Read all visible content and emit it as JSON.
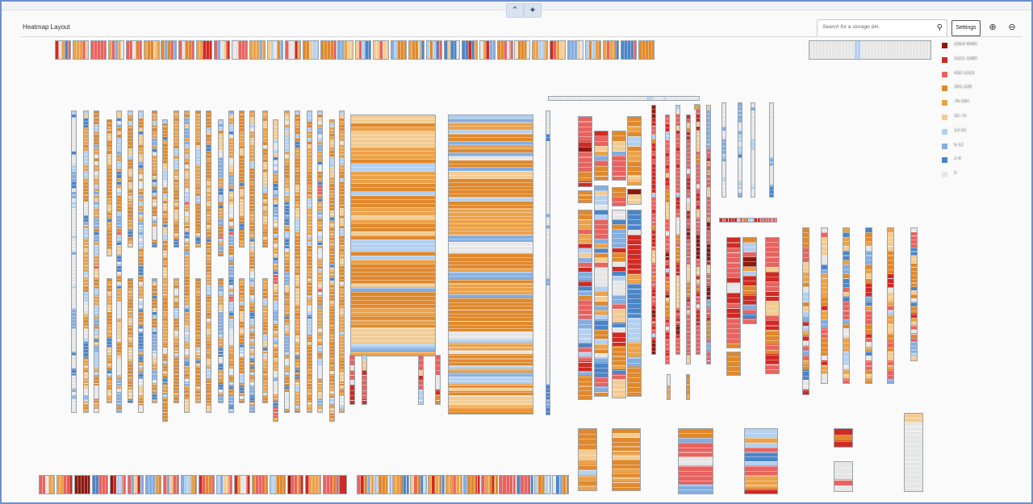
{
  "app": {
    "title": "Heatmap Layout",
    "search_placeholder": "Search for a storage bin.",
    "settings_label": "Settings",
    "icons": {
      "collapse": "chevron-up-icon",
      "pin": "pin-icon",
      "search": "search-icon",
      "zoom_in": "zoom-in-icon",
      "zoom_out": "zoom-out-icon"
    }
  },
  "legend": [
    {
      "label": "2553-4560",
      "color": "#8b1a10"
    },
    {
      "label": "1021-1580",
      "color": "#cf2a23"
    },
    {
      "label": "432-1023",
      "color": "#e8635f"
    },
    {
      "label": "161-228",
      "color": "#e0892c"
    },
    {
      "label": "76-160",
      "color": "#eba24a"
    },
    {
      "label": "32-75",
      "color": "#f3cc92"
    },
    {
      "label": "13-31",
      "color": "#b4d0ef"
    },
    {
      "label": "5-12",
      "color": "#84aee0"
    },
    {
      "label": "2-4",
      "color": "#4b85c8"
    },
    {
      "label": "0",
      "color": "#e6e6e6"
    }
  ]
}
